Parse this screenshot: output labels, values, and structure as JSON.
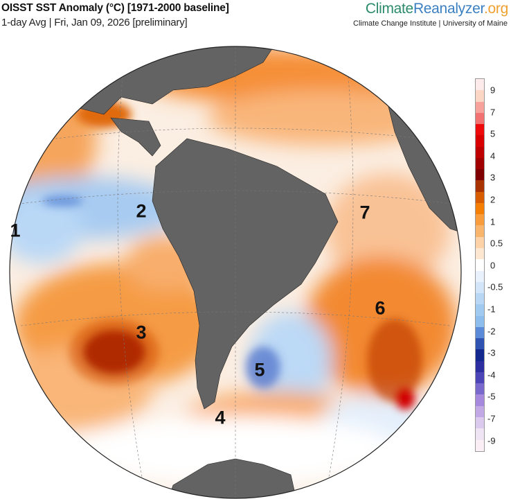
{
  "header": {
    "title": "OISST SST Anomaly (°C) [1971-2000 baseline]",
    "subtitle": "1-day Avg | Fri, Jan 09, 2026 [preliminary]",
    "brand_part1": "Climate",
    "brand_part2": "Reanalyzer",
    "brand_part3": ".org",
    "brand_sub": "Climate Change Institute | University of Maine"
  },
  "colorbar": {
    "labels": [
      "9",
      "7",
      "5",
      "4",
      "3",
      "2",
      "1",
      "0.5",
      "0",
      "-0.5",
      "-1",
      "-2",
      "-3",
      "-4",
      "-5",
      "-7",
      "-9"
    ],
    "colors": [
      "#fdeaea",
      "#fbd6c4",
      "#f7a39b",
      "#f27272",
      "#ee0a0a",
      "#d80000",
      "#bf0000",
      "#a00000",
      "#7e0000",
      "#a83200",
      "#d85c00",
      "#f57f05",
      "#f89c3c",
      "#fab56c",
      "#fcd2a6",
      "#fde7d1",
      "#ffffff",
      "#e9f2fc",
      "#d3e5f8",
      "#b7d7f5",
      "#a1caf0",
      "#8cbdec",
      "#5b8bd8",
      "#2f53b0",
      "#14298e",
      "#2d2fa0",
      "#4b45b8",
      "#7a69cc",
      "#a689dc",
      "#c2a9e6",
      "#dcc9ee",
      "#efe4f4",
      "#fbeef5"
    ]
  },
  "regions": [
    "1",
    "2",
    "3",
    "4",
    "5",
    "6",
    "7"
  ]
}
